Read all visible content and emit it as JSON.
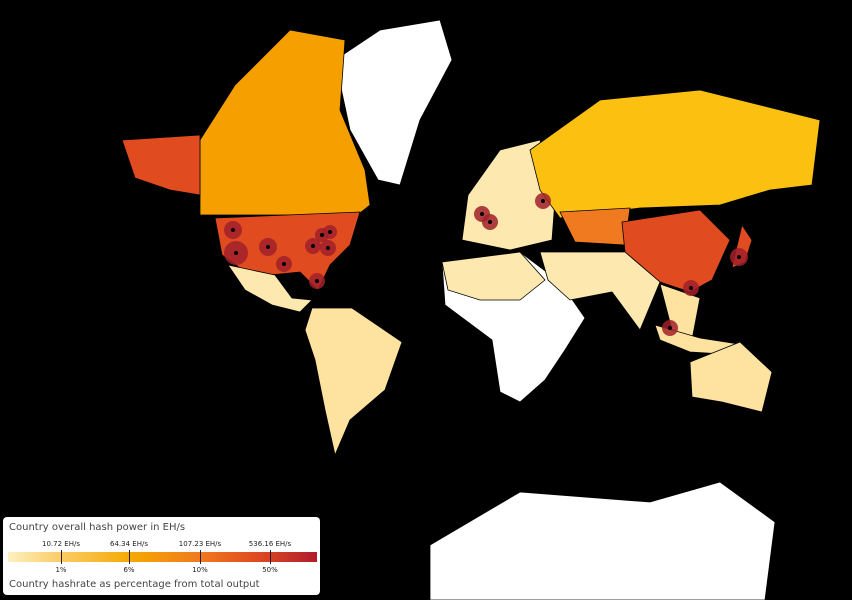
{
  "legend": {
    "title": "Country overall hash power in EH/s",
    "ticks": [
      {
        "hashrate": "10.72 EH/s",
        "share": "1%"
      },
      {
        "hashrate": "64.34 EH/s",
        "share": "6%"
      },
      {
        "hashrate": "107.23 EH/s",
        "share": "10%"
      },
      {
        "hashrate": "536.16 EH/s",
        "share": "50%"
      }
    ],
    "footer": "Country hashrate as percentage from total output"
  }
}
